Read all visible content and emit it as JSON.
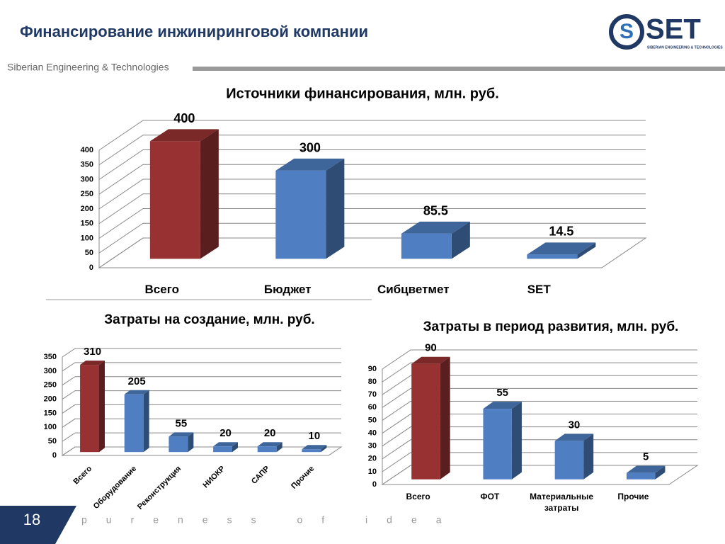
{
  "page": {
    "title": "Финансирование инжиниринговой компании",
    "subtitle": "Siberian Engineering & Technologies",
    "logo": "SET",
    "logo_sub": "SIBERIAN ENGINEERING & TECHNOLOGIES",
    "slide_number": "18",
    "footer": "pureness of idea"
  },
  "chart_data": [
    {
      "type": "bar3d",
      "title": "Источники финансирования, млн. руб.",
      "categories": [
        "Всего",
        "Бюджет",
        "Сибцветмет",
        "SET"
      ],
      "values": [
        400,
        300,
        85.5,
        14.5
      ],
      "colors": [
        "#983232",
        "#4f7fc2",
        "#4f7fc2",
        "#4f7fc2"
      ],
      "ylim": [
        0,
        400
      ],
      "yticks": [
        0,
        50,
        100,
        150,
        200,
        250,
        300,
        350,
        400
      ],
      "grid": true
    },
    {
      "type": "bar3d",
      "title": "Затраты на создание, млн. руб.",
      "categories": [
        "Всего",
        "Оборудование",
        "Реконструкция",
        "НИОКР",
        "САПР",
        "Прочие"
      ],
      "values": [
        310,
        205,
        55,
        20,
        20,
        10
      ],
      "colors": [
        "#983232",
        "#4f7fc2",
        "#4f7fc2",
        "#4f7fc2",
        "#4f7fc2",
        "#4f7fc2"
      ],
      "ylim": [
        0,
        350
      ],
      "yticks": [
        0,
        50,
        100,
        150,
        200,
        250,
        300,
        350
      ],
      "grid": true
    },
    {
      "type": "bar3d",
      "title": "Затраты в период развития, млн. руб.",
      "categories": [
        "Всего",
        "ФОТ",
        "Материальные затраты",
        "Прочие"
      ],
      "values": [
        90,
        55,
        30,
        5
      ],
      "colors": [
        "#983232",
        "#4f7fc2",
        "#4f7fc2",
        "#4f7fc2"
      ],
      "ylim": [
        0,
        90
      ],
      "yticks": [
        0,
        10,
        20,
        30,
        40,
        50,
        60,
        70,
        80,
        90
      ],
      "grid": true
    }
  ]
}
